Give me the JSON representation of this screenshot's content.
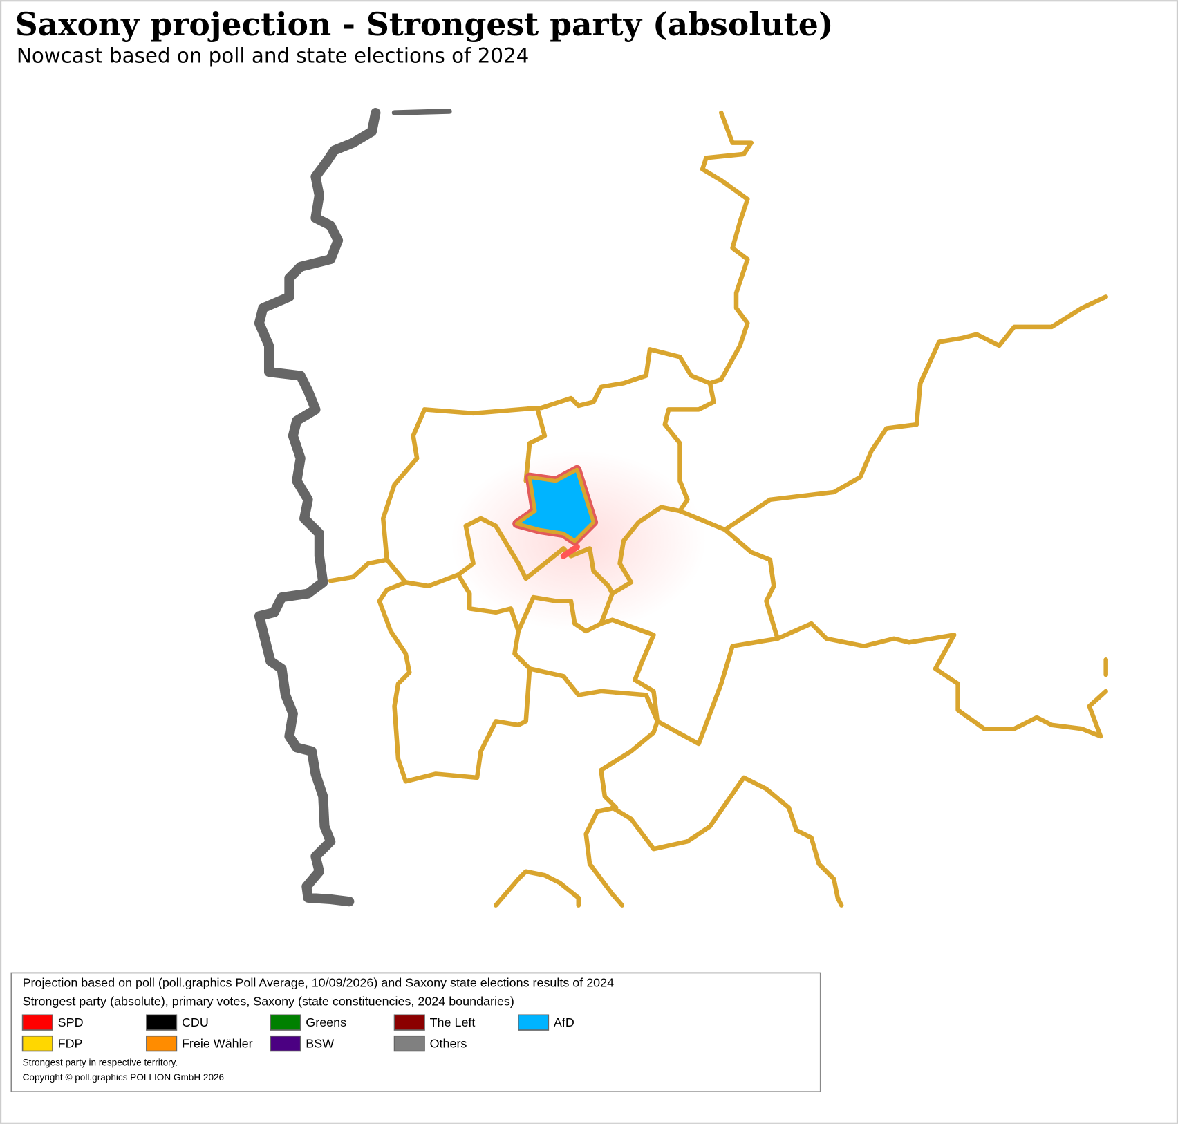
{
  "header": {
    "title": "Saxony projection - Strongest party (absolute)",
    "subtitle": "Nowcast based on poll and state elections of 2024"
  },
  "legend": {
    "lines": [
      "Projection based on poll (poll.graphics Poll Average, 10/09/2026) and Saxony state elections results of 2024",
      "Strongest party (absolute), primary votes, Saxony (state constituencies, 2024 boundaries)"
    ],
    "items": [
      {
        "name": "SPD",
        "color": "#ff0000"
      },
      {
        "name": "CDU",
        "color": "#000000"
      },
      {
        "name": "Greens",
        "color": "#008000"
      },
      {
        "name": "The Left",
        "color": "#8b0000"
      },
      {
        "name": "AfD",
        "color": "#00b4ff"
      },
      {
        "name": "FDP",
        "color": "#ffd700"
      },
      {
        "name": "Freie Wähler",
        "color": "#ff8c00"
      },
      {
        "name": "BSW",
        "color": "#4b0082"
      },
      {
        "name": "Others",
        "color": "#808080"
      }
    ],
    "note": "Strongest party in respective territory.",
    "copyright": "Copyright © poll.graphics POLLION GmbH 2026"
  }
}
